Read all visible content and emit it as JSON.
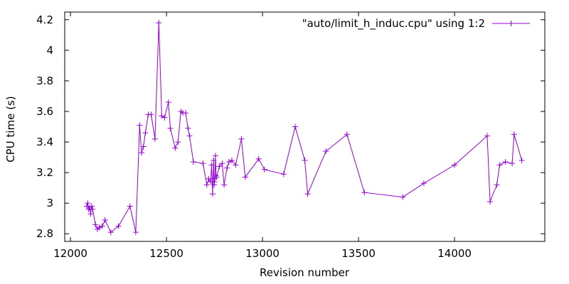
{
  "chart_data": {
    "type": "line",
    "xlabel": "Revision number",
    "ylabel": "CPU time (s)",
    "xlim": [
      11970,
      14470
    ],
    "ylim": [
      2.75,
      4.25
    ],
    "xticks": [
      12000,
      12500,
      13000,
      13500,
      14000
    ],
    "yticks": [
      2.8,
      3.0,
      3.2,
      3.4,
      3.6,
      3.8,
      4.0,
      4.2
    ],
    "xtick_labels": [
      "12000",
      "12500",
      "13000",
      "13500",
      "14000"
    ],
    "ytick_labels": [
      "2.8",
      "3",
      "3.2",
      "3.4",
      "3.6",
      "3.8",
      "4",
      "4.2"
    ],
    "grid": false,
    "legend_position": "top-right",
    "color": "#9400d3",
    "series": [
      {
        "name": "\"auto/limit_h_induc.cpu\" using 1:2",
        "x": [
          12085,
          12090,
          12095,
          12100,
          12105,
          12110,
          12115,
          12130,
          12140,
          12150,
          12165,
          12180,
          12210,
          12250,
          12310,
          12340,
          12360,
          12370,
          12380,
          12390,
          12405,
          12420,
          12440,
          12460,
          12475,
          12490,
          12510,
          12520,
          12545,
          12560,
          12575,
          12585,
          12600,
          12612,
          12620,
          12640,
          12690,
          12710,
          12720,
          12730,
          12735,
          12740,
          12745,
          12748,
          12750,
          12752,
          12755,
          12758,
          12760,
          12775,
          12790,
          12800,
          12815,
          12825,
          12840,
          12860,
          12890,
          12910,
          12980,
          13010,
          13110,
          13170,
          13220,
          13235,
          13330,
          13440,
          13530,
          13730,
          13840,
          14000,
          14170,
          14185,
          14220,
          14235,
          14265,
          14300,
          14310,
          14350
        ],
        "y": [
          2.98,
          3.0,
          2.96,
          2.97,
          2.93,
          2.98,
          2.96,
          2.86,
          2.83,
          2.84,
          2.85,
          2.89,
          2.81,
          2.85,
          2.98,
          2.81,
          3.51,
          3.33,
          3.37,
          3.46,
          3.58,
          3.58,
          3.42,
          4.18,
          3.57,
          3.56,
          3.66,
          3.49,
          3.36,
          3.4,
          3.6,
          3.59,
          3.59,
          3.49,
          3.44,
          3.27,
          3.26,
          3.12,
          3.16,
          3.14,
          3.25,
          3.06,
          3.28,
          3.12,
          3.14,
          3.16,
          3.31,
          3.18,
          3.17,
          3.24,
          3.26,
          3.12,
          3.23,
          3.27,
          3.28,
          3.25,
          3.42,
          3.17,
          3.29,
          3.22,
          3.19,
          3.5,
          3.28,
          3.06,
          3.34,
          3.45,
          3.07,
          3.04,
          3.13,
          3.25,
          3.44,
          3.01,
          3.12,
          3.25,
          3.27,
          3.26,
          3.45,
          3.28
        ]
      }
    ]
  }
}
